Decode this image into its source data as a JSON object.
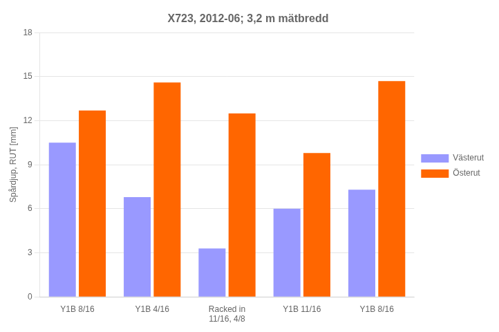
{
  "chart_data": {
    "type": "bar",
    "title": "X723, 2012-06; 3,2 m mätbredd",
    "ylabel": "Spårdjup, RUT [mm]",
    "categories": [
      "Y1B 8/16",
      "Y1B 4/16",
      "Racked in\n11/16, 4/8",
      "Y1B 11/16",
      "Y1B 8/16"
    ],
    "series": [
      {
        "name": "Västerut",
        "color": "#9999ff",
        "values": [
          10.5,
          6.8,
          3.3,
          6.0,
          7.3
        ]
      },
      {
        "name": "Österut",
        "color": "#ff6600",
        "values": [
          12.7,
          14.6,
          12.5,
          9.8,
          14.7
        ]
      }
    ],
    "ylim": [
      0,
      18
    ],
    "yticks": [
      0,
      3,
      6,
      9,
      12,
      15,
      18
    ],
    "grid": true,
    "legend": "right"
  }
}
